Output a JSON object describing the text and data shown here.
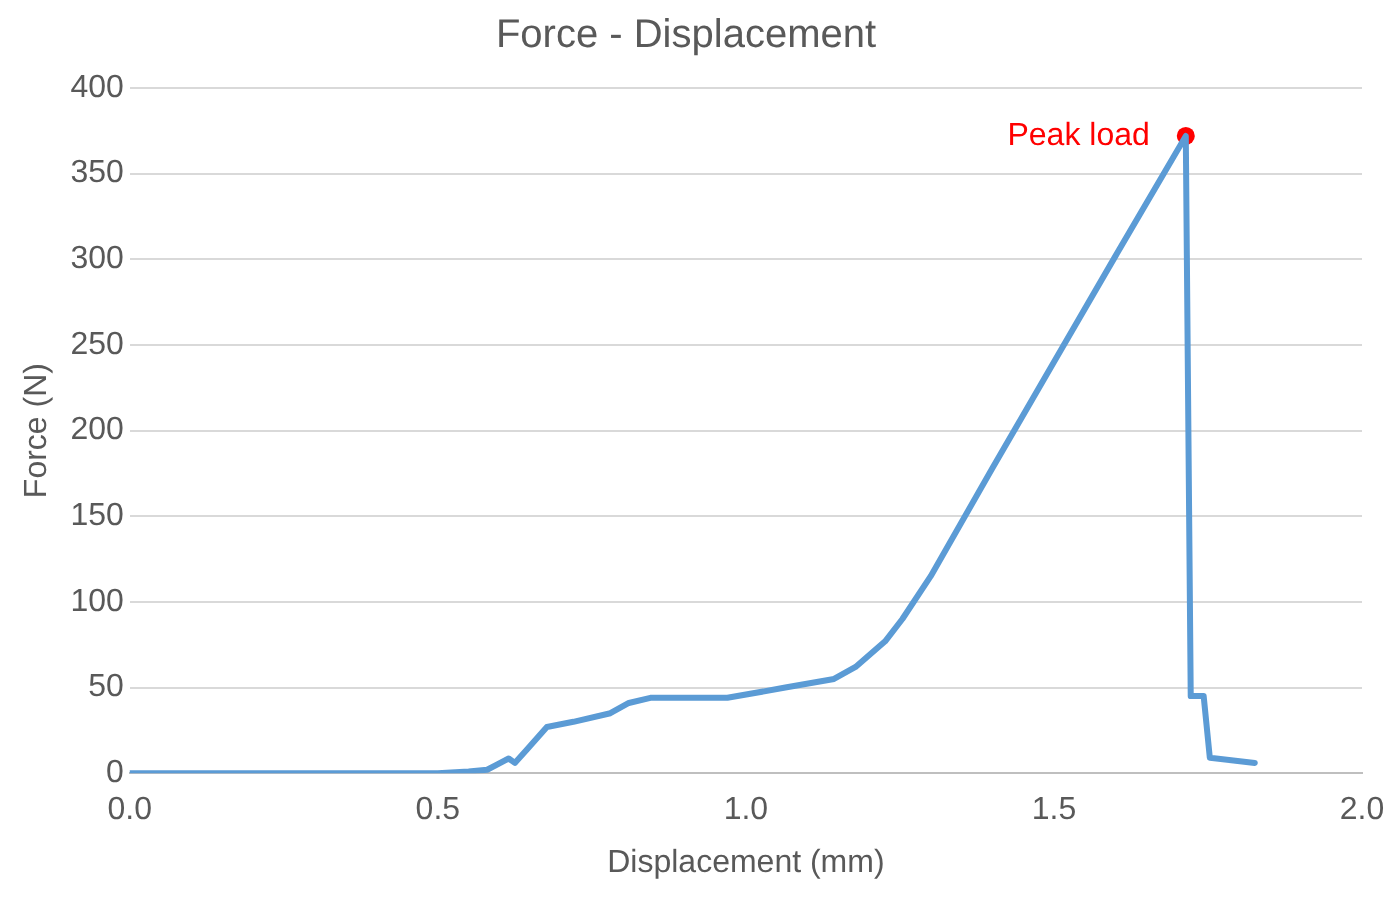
{
  "chart_data": {
    "type": "line",
    "title": "Force - Displacement",
    "xlabel": "Displacement (mm)",
    "ylabel": "Force (N)",
    "xlim": [
      0,
      2
    ],
    "xticks": [
      {
        "value": 0,
        "label": "0.0"
      },
      {
        "value": 0.5,
        "label": "0.5"
      },
      {
        "value": 1,
        "label": "1.0"
      },
      {
        "value": 1.5,
        "label": "1.5"
      },
      {
        "value": 2,
        "label": "2.0"
      }
    ],
    "ylim": [
      0,
      400
    ],
    "yticks": [
      0,
      50,
      100,
      150,
      200,
      250,
      300,
      350,
      400
    ],
    "grid": "y",
    "legend": false,
    "marker": "none",
    "line_style": "solid",
    "series": [
      {
        "color": "#5b9bd5",
        "x": [
          0,
          0.3,
          0.5,
          0.55,
          0.58,
          0.615,
          0.625,
          0.645,
          0.677,
          0.72,
          0.78,
          0.81,
          0.845,
          0.97,
          1.064,
          1.143,
          1.178,
          1.226,
          1.254,
          1.3,
          1.4,
          1.5,
          1.6,
          1.714,
          1.722,
          1.743,
          1.753,
          1.826
        ],
        "values": [
          0,
          0,
          0,
          1,
          2,
          8.6,
          6,
          14,
          27,
          30,
          35,
          41,
          44,
          44,
          50,
          55,
          62,
          77,
          90,
          115,
          178,
          240,
          302,
          372,
          45,
          45,
          9,
          6
        ]
      },
      {
        "type": "scatter",
        "color": "#ff0000",
        "x": [
          1.714
        ],
        "values": [
          372
        ],
        "marker": "circle"
      }
    ],
    "annotations": [
      {
        "text": "Peak load",
        "x": 1.714,
        "y": 372
      }
    ]
  }
}
